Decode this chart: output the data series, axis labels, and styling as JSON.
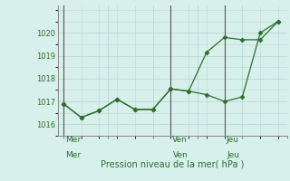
{
  "line1_x": [
    0,
    1,
    2,
    3,
    4,
    5,
    6,
    7,
    8,
    9,
    10,
    11,
    12
  ],
  "line1_y": [
    1016.9,
    1016.3,
    1016.6,
    1017.1,
    1016.65,
    1016.65,
    1017.55,
    1017.45,
    1019.15,
    1019.8,
    1019.7,
    1019.7,
    1020.5
  ],
  "line2_x": [
    0,
    1,
    2,
    3,
    4,
    5,
    6,
    7,
    8,
    9,
    10,
    11,
    12
  ],
  "line2_y": [
    1016.9,
    1016.3,
    1016.6,
    1017.1,
    1016.65,
    1016.65,
    1017.55,
    1017.45,
    1017.3,
    1017.0,
    1017.2,
    1020.0,
    1020.5
  ],
  "line_color": "#2d6e2d",
  "bg_color": "#d8f0ec",
  "grid_color": "#b8d8d4",
  "xlabel": "Pression niveau de la mer( hPa )",
  "ylim": [
    1015.5,
    1021.2
  ],
  "yticks": [
    1016,
    1017,
    1018,
    1019,
    1020
  ],
  "vline_labels": [
    "Mer",
    "Ven",
    "Jeu"
  ],
  "vline_x": [
    0,
    6,
    9
  ],
  "xlim": [
    -0.3,
    12.5
  ]
}
